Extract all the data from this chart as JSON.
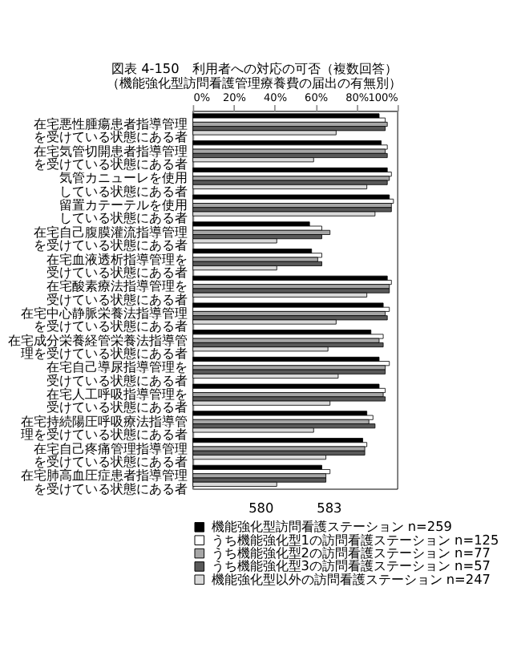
{
  "chart_data": {
    "type": "bar",
    "orientation": "horizontal",
    "title": "図表 4-150　利用者への対応の可否（複数回答）",
    "subtitle": "（機能強化型訪問看護管理療養費の届出の有無別）",
    "categories": [
      "在宅悪性腫瘍患者指導管理を受けている状態にある者",
      "在宅気管切開患者指導管理を受けている状態にある者",
      "気管カニューレを使用している状態にある者",
      "留置カテーテルを使用している状態にある者",
      "在宅自己腹膜灌流指導管理を受けている状態にある者",
      "在宅血液透析指導管理を受けている状態にある者",
      "在宅酸素療法指導管理を受けている状態にある者",
      "在宅中心静脈栄養法指導管理を受けている状態にある者",
      "在宅成分栄養経管栄養法指導管理を受けている状態にある者",
      "在宅自己導尿指導管理を受けている状態にある者",
      "在宅人工呼吸指導管理を受けている状態にある者",
      "在宅持続陽圧呼吸療法指導管理を受けている状態にある者",
      "在宅自己疼痛管理指導管理を受けている状態にある者",
      "在宅肺高血圧症患者指導管理を受けている状態にある者"
    ],
    "series": [
      {
        "name": "機能強化型訪問看護ステーション n=259",
        "color": "#000000",
        "values": [
          91,
          92,
          95,
          96,
          57,
          58,
          95,
          93,
          87,
          91,
          91,
          85,
          83,
          63
        ]
      },
      {
        "name": "うち機能強化型1の訪問看護ステーション n=125",
        "color": "#ffffff",
        "values": [
          94,
          95,
          97,
          98,
          63,
          63,
          97,
          96,
          93,
          96,
          94,
          88,
          85,
          67
        ]
      },
      {
        "name": "うち機能強化型2の訪問看護ステーション n=77",
        "color": "#a6a6a6",
        "values": [
          95,
          94,
          96,
          97,
          67,
          61,
          96,
          94,
          91,
          94,
          93,
          86,
          84,
          65
        ]
      },
      {
        "name": "うち機能強化型3の訪問看護ステーション n=57",
        "color": "#595959",
        "values": [
          94,
          95,
          95,
          97,
          63,
          63,
          96,
          95,
          93,
          94,
          94,
          89,
          84,
          65
        ]
      },
      {
        "name": "機能強化型以外の訪問看護ステーション n=247",
        "color": "#d9d9d9",
        "values": [
          70,
          59,
          85,
          89,
          41,
          41,
          85,
          70,
          66,
          71,
          67,
          59,
          65,
          41
        ]
      }
    ],
    "xlim": [
      0,
      100
    ],
    "xticks": [
      {
        "value": 0,
        "label": "0%"
      },
      {
        "value": 20,
        "label": "20%"
      },
      {
        "value": 40,
        "label": "40%"
      },
      {
        "value": 60,
        "label": "60%"
      },
      {
        "value": 80,
        "label": "80%"
      },
      {
        "value": 100,
        "label": "100%"
      }
    ],
    "grid": false,
    "legend": "bottom",
    "annotations": [
      "580",
      "583"
    ]
  }
}
